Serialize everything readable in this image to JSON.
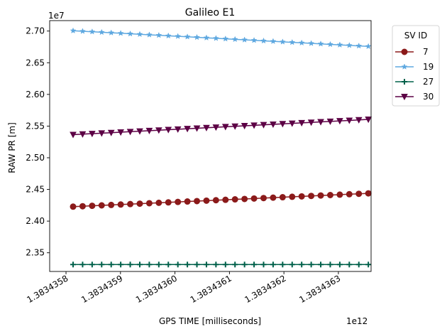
{
  "chart_data": {
    "type": "line",
    "title": "Galileo E1",
    "xlabel": "GPS TIME [milliseconds]",
    "ylabel": "RAW PR [m]",
    "x_offset_label": "1e12",
    "y_offset_label": "1e7",
    "x_ticks": [
      "1.3834358",
      "1.3834359",
      "1.3834360",
      "1.3834361",
      "1.3834362",
      "1.3834363"
    ],
    "x_tick_values": [
      1.3834358,
      1.3834359,
      1.383436,
      1.3834361,
      1.3834362,
      1.3834363
    ],
    "y_ticks": [
      "2.35",
      "2.40",
      "2.45",
      "2.50",
      "2.55",
      "2.60",
      "2.65",
      "2.70"
    ],
    "y_tick_values": [
      2.35,
      2.4,
      2.45,
      2.5,
      2.55,
      2.6,
      2.65,
      2.7
    ],
    "xlim": [
      1.38343577,
      1.38343636
    ],
    "ylim": [
      2.3205,
      2.7165
    ],
    "x_start": 1.383435813,
    "x_end": 1.383436355,
    "n_points": 32,
    "grid": false,
    "legend_title": "SV ID",
    "legend_position": "outside-top-right",
    "series": [
      {
        "name": "7",
        "color": "#8b1a1a",
        "marker": "circle",
        "y_start": 2.4228,
        "y_end": 2.4438
      },
      {
        "name": "19",
        "color": "#5ea8e0",
        "marker": "star",
        "y_start": 2.7005,
        "y_end": 2.6758
      },
      {
        "name": "27",
        "color": "#00604a",
        "marker": "plus",
        "y_start": 2.3315,
        "y_end": 2.3315
      },
      {
        "name": "30",
        "color": "#5c0045",
        "marker": "triangle-down",
        "y_start": 2.5365,
        "y_end": 2.5605
      }
    ]
  }
}
